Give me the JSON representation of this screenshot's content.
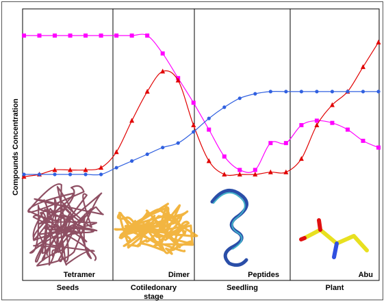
{
  "chart_data": {
    "type": "line",
    "ylabel": "Compounds Concentration",
    "xlabel": "",
    "ylim": [
      0,
      100
    ],
    "xlim": [
      0,
      24
    ],
    "grid": false,
    "stages": [
      {
        "lines": [
          "Seeds"
        ],
        "structure": "Tetramer",
        "structure_color": "#7a3048"
      },
      {
        "lines": [
          "Cotiledonary",
          "stage"
        ],
        "structure": "Dimer",
        "structure_color": "#f0a820"
      },
      {
        "lines": [
          "Seedling"
        ],
        "structure": "Peptides",
        "structure_color": "#2a4ea8"
      },
      {
        "lines": [
          "Plant"
        ],
        "structure": "Abu",
        "structure_color": "#e8e020"
      }
    ],
    "stage_boundaries": [
      5.5,
      10.5,
      16.5
    ],
    "series": [
      {
        "color": "#ff00ff",
        "marker": "square",
        "points": [
          [
            0,
            100
          ],
          [
            1,
            100
          ],
          [
            2,
            100
          ],
          [
            3,
            100
          ],
          [
            4,
            100
          ],
          [
            5,
            100
          ],
          [
            6,
            100
          ],
          [
            7,
            100
          ],
          [
            8,
            100
          ],
          [
            9,
            92
          ],
          [
            10,
            81
          ],
          [
            11,
            70
          ],
          [
            12,
            58
          ],
          [
            13,
            46
          ],
          [
            14,
            40
          ],
          [
            15,
            40
          ],
          [
            16,
            52
          ],
          [
            17,
            52
          ],
          [
            18,
            60
          ],
          [
            19,
            62
          ],
          [
            20,
            61
          ],
          [
            21,
            58
          ],
          [
            22,
            53
          ],
          [
            23,
            50
          ]
        ]
      },
      {
        "color": "#e00000",
        "marker": "triangle",
        "points": [
          [
            0,
            37
          ],
          [
            1,
            38
          ],
          [
            2,
            40
          ],
          [
            3,
            40
          ],
          [
            4,
            40
          ],
          [
            5,
            41
          ],
          [
            6,
            48
          ],
          [
            7,
            62
          ],
          [
            8,
            75
          ],
          [
            9,
            84
          ],
          [
            10,
            80
          ],
          [
            11,
            60
          ],
          [
            12,
            44
          ],
          [
            13,
            38
          ],
          [
            14,
            38
          ],
          [
            15,
            38
          ],
          [
            16,
            39
          ],
          [
            17,
            39
          ],
          [
            18,
            45
          ],
          [
            19,
            60
          ],
          [
            20,
            69
          ],
          [
            21,
            75
          ],
          [
            22,
            86
          ],
          [
            23,
            97
          ]
        ]
      },
      {
        "color": "#3060e0",
        "marker": "circle",
        "points": [
          [
            0,
            38
          ],
          [
            1,
            38
          ],
          [
            2,
            38
          ],
          [
            3,
            38
          ],
          [
            4,
            38
          ],
          [
            5,
            38
          ],
          [
            6,
            41
          ],
          [
            7,
            44
          ],
          [
            8,
            47
          ],
          [
            9,
            50
          ],
          [
            10,
            52
          ],
          [
            11,
            57
          ],
          [
            12,
            63
          ],
          [
            13,
            68
          ],
          [
            14,
            72
          ],
          [
            15,
            74
          ],
          [
            16,
            75
          ],
          [
            17,
            75
          ],
          [
            18,
            75
          ],
          [
            19,
            75
          ],
          [
            20,
            75
          ],
          [
            21,
            75
          ],
          [
            22,
            75
          ],
          [
            23,
            75
          ]
        ]
      }
    ]
  }
}
